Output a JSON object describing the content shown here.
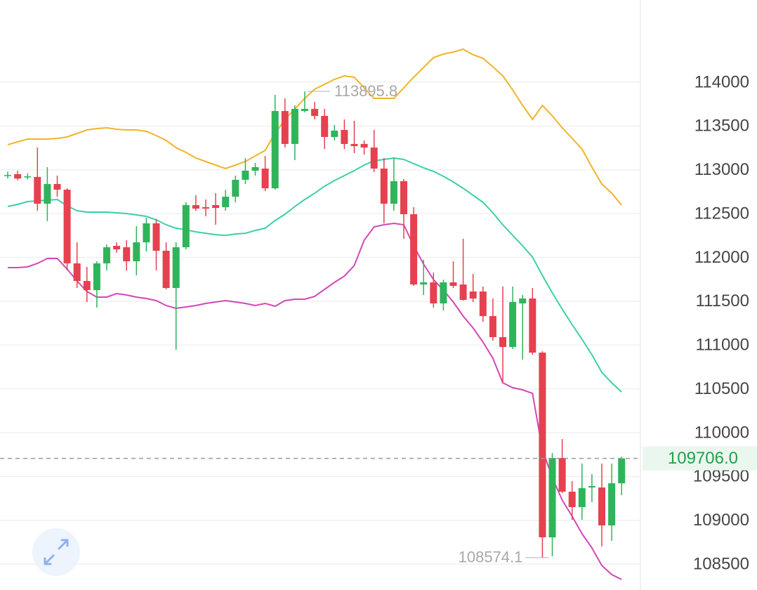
{
  "chart_data": {
    "type": "candlestick",
    "open": [
      112930,
      112950,
      112920,
      112918,
      112613,
      112838,
      112773,
      111932,
      111731,
      111627,
      111932,
      112132,
      112116,
      111956,
      112172,
      112389,
      112076,
      111651,
      112116,
      112597,
      112573,
      112597,
      112573,
      112693,
      112886,
      112990,
      113014,
      112789,
      113671,
      113295,
      113671,
      113695,
      113615,
      113375,
      113455,
      113295,
      113295,
      113254,
      113014,
      112613,
      112870,
      112493,
      111691,
      111715,
      111475,
      111715,
      111691,
      111611,
      111611,
      111330,
      111090,
      110978,
      111475,
      111531,
      110913,
      108805,
      109711,
      109326,
      109150,
      109374,
      109374,
      108941,
      109422
    ],
    "high": [
      112980,
      112990,
      112960,
      113254,
      113030,
      112934,
      112789,
      112172,
      111892,
      111956,
      112148,
      112172,
      112196,
      112357,
      112453,
      112437,
      112172,
      112172,
      112629,
      112709,
      112661,
      112733,
      112773,
      112934,
      113134,
      113078,
      113158,
      113856,
      113816,
      113735,
      113895.8,
      113776,
      113695,
      113511,
      113575,
      113559,
      113335,
      113455,
      113134,
      113134,
      112894,
      112573,
      111972,
      111827,
      111747,
      111956,
      112212,
      111811,
      111667,
      111531,
      111667,
      111667,
      111571,
      111651,
      110929,
      109767,
      109927,
      109446,
      109647,
      109527,
      109647,
      109647,
      109727
    ],
    "low": [
      112900,
      112880,
      112890,
      112533,
      112413,
      112693,
      111851,
      111651,
      111491,
      111427,
      111851,
      112052,
      111851,
      111795,
      112068,
      111851,
      111635,
      110946,
      112092,
      112533,
      112469,
      112373,
      112533,
      112629,
      112838,
      112934,
      112757,
      112773,
      113254,
      113110,
      113655,
      113575,
      113238,
      113335,
      113238,
      113190,
      113174,
      112974,
      112389,
      112533,
      112212,
      111675,
      111571,
      111427,
      111394,
      111651,
      111507,
      111491,
      111266,
      111050,
      110569,
      110954,
      110833,
      110889,
      108574.1,
      108589,
      109310,
      109005,
      109005,
      109206,
      108701,
      108765,
      109286
    ],
    "close": [
      112940,
      112900,
      112925,
      112613,
      112838,
      112773,
      111932,
      111731,
      111627,
      111932,
      112116,
      112092,
      111956,
      112172,
      112389,
      112076,
      111651,
      112116,
      112597,
      112557,
      112557,
      112565,
      112693,
      112886,
      112990,
      113030,
      112789,
      113671,
      113295,
      113695,
      113695,
      113615,
      113375,
      113447,
      113295,
      113270,
      113254,
      113014,
      112613,
      112870,
      112493,
      111691,
      111715,
      111475,
      111715,
      111675,
      111515,
      111531,
      111330,
      111090,
      110978,
      111491,
      111531,
      110913,
      108805,
      109711,
      109326,
      109150,
      109366,
      109390,
      108941,
      109422,
      109706
    ],
    "up_color": "#2fb45a",
    "down_color": "#e5414f",
    "bands": [
      {
        "color": "#f0b429",
        "values": [
          113286,
          113319,
          113351,
          113351,
          113351,
          113359,
          113375,
          113415,
          113455,
          113471,
          113479,
          113463,
          113455,
          113455,
          113439,
          113391,
          113335,
          113254,
          113198,
          113134,
          113094,
          113054,
          113014,
          113054,
          113094,
          113158,
          113222,
          113415,
          113575,
          113695,
          113816,
          113920,
          113976,
          114032,
          114072,
          114056,
          113936,
          113816,
          113816,
          113816,
          113936,
          114056,
          114168,
          114281,
          114321,
          114345,
          114377,
          114313,
          114273,
          114176,
          114072,
          113912,
          113735,
          113575,
          113735,
          113615,
          113479,
          113359,
          113238,
          113030,
          112838,
          112733,
          112597
        ]
      },
      {
        "color": "#3dcfa8",
        "values": [
          112581,
          112605,
          112637,
          112645,
          112653,
          112661,
          112589,
          112533,
          112517,
          112517,
          112517,
          112509,
          112501,
          112485,
          112469,
          112429,
          112373,
          112333,
          112316,
          112292,
          112276,
          112260,
          112252,
          112268,
          112276,
          112308,
          112333,
          112421,
          112493,
          112581,
          112661,
          112733,
          112813,
          112878,
          112934,
          112990,
          113054,
          113102,
          113118,
          113134,
          113118,
          113070,
          113022,
          112982,
          112926,
          112862,
          112789,
          112709,
          112629,
          112509,
          112373,
          112252,
          112132,
          112004,
          111795,
          111595,
          111410,
          111234,
          111066,
          110889,
          110689,
          110569,
          110464
        ]
      },
      {
        "color": "#d447b5",
        "values": [
          111884,
          111884,
          111892,
          111932,
          111988,
          111988,
          111867,
          111731,
          111611,
          111547,
          111547,
          111587,
          111571,
          111547,
          111531,
          111507,
          111451,
          111419,
          111435,
          111451,
          111475,
          111491,
          111507,
          111491,
          111475,
          111451,
          111475,
          111443,
          111507,
          111523,
          111523,
          111555,
          111635,
          111715,
          111787,
          111908,
          112196,
          112349,
          112373,
          112389,
          112373,
          112132,
          111924,
          111747,
          111627,
          111491,
          111330,
          111194,
          111034,
          110849,
          110569,
          110513,
          110489,
          110448,
          109807,
          109487,
          109230,
          109046,
          108846,
          108685,
          108484,
          108380,
          108324
        ]
      }
    ],
    "last_price": {
      "value": 109706,
      "label": "109706.0",
      "color": "#22a04b"
    },
    "ylim": [
      108204,
      114938
    ],
    "yticks": [
      108500,
      109000,
      109500,
      110000,
      110500,
      111000,
      111500,
      112000,
      112500,
      113000,
      113500,
      114000
    ],
    "grid": true
  }
}
